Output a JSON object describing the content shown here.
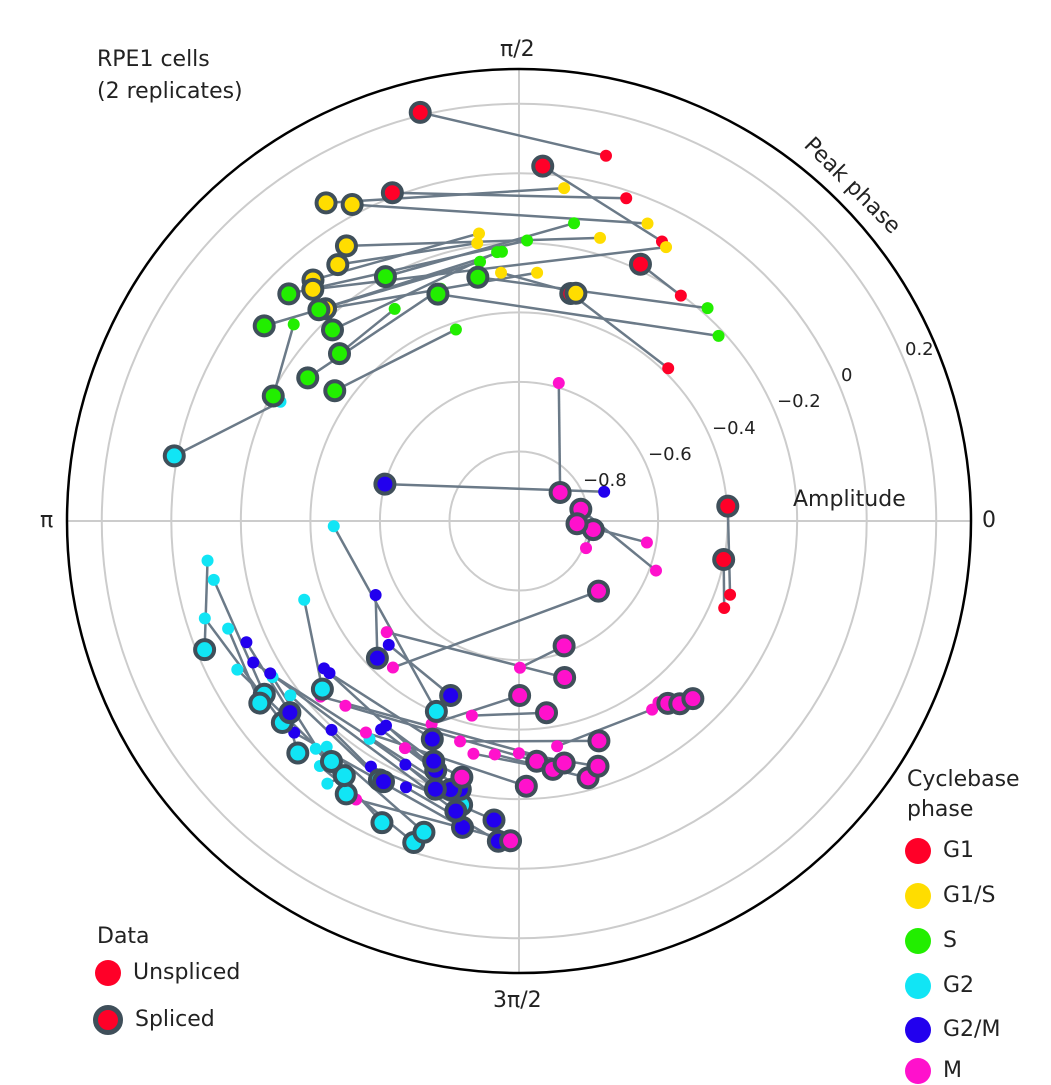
{
  "title": {
    "line1": "RPE1 cells",
    "line2": "(2 replicates)"
  },
  "axis": {
    "angular_label": "Peak phase",
    "radial_label": "Amplitude",
    "angular_ticks": [
      "0",
      "π/2",
      "π",
      "3π/2"
    ],
    "radial_ticks": [
      "0.2",
      "0",
      "−0.2",
      "−0.4",
      "−0.6",
      "−0.8"
    ]
  },
  "legend_data": {
    "title": "Data",
    "items": [
      {
        "label": "Unspliced",
        "style": "plain",
        "color": "#ff0028"
      },
      {
        "label": "Spliced",
        "style": "ring",
        "color": "#ff0028"
      }
    ]
  },
  "legend_phase": {
    "title": "Cyclebase\nphase",
    "items": [
      {
        "label": "G1",
        "color": "#ff0028"
      },
      {
        "label": "G1/S",
        "color": "#ffdd00"
      },
      {
        "label": "S",
        "color": "#22ee00"
      },
      {
        "label": "G2",
        "color": "#11e5f5"
      },
      {
        "label": "G2/M",
        "color": "#2200ee"
      },
      {
        "label": "M",
        "color": "#ff11cc"
      }
    ]
  },
  "chart_data": {
    "type": "scatter",
    "coordinate_system": "polar",
    "theta_unit": "radians",
    "r_range": [
      -1.0,
      0.3
    ],
    "r_gridlines": [
      -0.8,
      -0.6,
      -0.4,
      -0.2,
      0,
      0.2
    ],
    "theta_gridlines": [
      0,
      1.5708,
      3.1416,
      4.7124
    ],
    "grid": true,
    "colors": {
      "G1": "#ff0028",
      "G1/S": "#ffdd00",
      "S": "#22ee00",
      "G2": "#11e5f5",
      "G2/M": "#2200ee",
      "M": "#ff11cc",
      "connector": "#6b7a88",
      "ring": "#3f4f5a"
    },
    "series": [
      {
        "name": "Unspliced",
        "style": "plain"
      },
      {
        "name": "Spliced",
        "style": "ring"
      }
    ],
    "pairs": [
      {
        "phase": "G1",
        "spliced": [
          1.808,
          0.209
        ],
        "unspliced": [
          1.337,
          0.08
        ]
      },
      {
        "phase": "G1",
        "spliced": [
          1.939,
          0.012
        ],
        "unspliced": [
          1.25,
          -0.022
        ]
      },
      {
        "phase": "G1",
        "spliced": [
          1.504,
          0.023
        ],
        "unspliced": [
          1.098,
          -0.097
        ]
      },
      {
        "phase": "G1",
        "spliced": [
          1.347,
          -0.329
        ],
        "unspliced": [
          0.797,
          -0.386
        ]
      },
      {
        "phase": "G1",
        "spliced": [
          0.071,
          -0.398
        ],
        "unspliced": [
          -0.336,
          -0.357
        ]
      },
      {
        "phase": "G1",
        "spliced": [
          -0.186,
          -0.401
        ],
        "unspliced": [
          -0.401,
          -0.359
        ]
      },
      {
        "phase": "G1",
        "spliced": [
          1.129,
          -0.183
        ],
        "unspliced": [
          0.948,
          -0.202
        ]
      },
      {
        "phase": "G1/S",
        "spliced": [
          2.116,
          0.07
        ],
        "unspliced": [
          1.436,
          -0.034
        ]
      },
      {
        "phase": "G1/S",
        "spliced": [
          2.056,
          0.029
        ],
        "unspliced": [
          1.163,
          -0.068
        ]
      },
      {
        "phase": "G1/S",
        "spliced": [
          2.131,
          -0.066
        ],
        "unspliced": [
          1.292,
          -0.153
        ]
      },
      {
        "phase": "G1/S",
        "spliced": [
          2.278,
          -0.088
        ],
        "unspliced": [
          1.709,
          -0.165
        ]
      },
      {
        "phase": "G1/S",
        "spliced": [
          2.298,
          -0.108
        ],
        "unspliced": [
          1.078,
          -0.106
        ]
      },
      {
        "phase": "G1/S",
        "spliced": [
          2.31,
          -0.174
        ],
        "unspliced": [
          1.498,
          -0.284
        ]
      },
      {
        "phase": "G1/S",
        "spliced": [
          1.326,
          -0.325
        ],
        "unspliced": [
          1.643,
          -0.284
        ]
      },
      {
        "phase": "G1/S",
        "spliced": [
          2.186,
          -0.097
        ],
        "unspliced": [
          1.72,
          -0.192
        ]
      },
      {
        "phase": "S",
        "spliced": [
          2.363,
          -0.07
        ],
        "unspliced": [
          1.542,
          -0.193
        ]
      },
      {
        "phase": "S",
        "spliced": [
          2.488,
          -0.077
        ],
        "unspliced": [
          1.72,
          -0.246
        ]
      },
      {
        "phase": "S",
        "spliced": [
          2.329,
          -0.163
        ],
        "unspliced": [
          1.634,
          -0.224
        ]
      },
      {
        "phase": "S",
        "spliced": [
          2.071,
          -0.199
        ],
        "unspliced": [
          1.388,
          -0.129
        ]
      },
      {
        "phase": "S",
        "spliced": [
          2.546,
          -0.266
        ],
        "unspliced": [
          1.896,
          -0.295
        ]
      },
      {
        "phase": "S",
        "spliced": [
          2.671,
          -0.207
        ],
        "unspliced": [
          2.424,
          -0.14
        ]
      },
      {
        "phase": "S",
        "spliced": [
          2.526,
          -0.351
        ],
        "unspliced": [
          1.889,
          -0.42
        ]
      },
      {
        "phase": "S",
        "spliced": [
          1.738,
          -0.289
        ],
        "unspliced": [
          0.846,
          -0.182
        ]
      },
      {
        "phase": "S",
        "spliced": [
          1.914,
          -0.307
        ],
        "unspliced": [
          0.748,
          -0.217
        ]
      },
      {
        "phase": "S",
        "spliced": [
          2.344,
          -0.232
        ],
        "unspliced": [
          1.652,
          -0.224
        ]
      },
      {
        "phase": "S",
        "spliced": [
          2.391,
          -0.294
        ],
        "unspliced": [
          2.101,
          -0.293
        ]
      },
      {
        "phase": "G2",
        "spliced": [
          2.955,
          0.009
        ],
        "unspliced": [
          2.678,
          -0.233
        ]
      },
      {
        "phase": "G2",
        "spliced": [
          3.53,
          -0.023
        ],
        "unspliced": [
          3.268,
          -0.097
        ]
      },
      {
        "phase": "G2",
        "spliced": [
          3.739,
          -0.114
        ],
        "unspliced": [
          3.332,
          -0.106
        ]
      },
      {
        "phase": "G2",
        "spliced": [
          3.754,
          -0.089
        ],
        "unspliced": [
          3.496,
          -0.108
        ]
      },
      {
        "phase": "G2",
        "spliced": [
          3.847,
          -0.106
        ],
        "unspliced": [
          3.442,
          -0.054
        ]
      },
      {
        "phase": "G2",
        "spliced": [
          4.05,
          -0.123
        ],
        "unspliced": [
          3.627,
          -0.084
        ]
      },
      {
        "phase": "G2",
        "spliced": [
          4.218,
          -0.154
        ],
        "unspliced": [
          3.793,
          -0.173
        ]
      },
      {
        "phase": "G2",
        "spliced": [
          4.148,
          -0.071
        ],
        "unspliced": [
          3.706,
          -0.161
        ]
      },
      {
        "phase": "G2",
        "spliced": [
          4.286,
          -0.047
        ],
        "unspliced": [
          3.984,
          -0.122
        ]
      },
      {
        "phase": "G2",
        "spliced": [
          4.396,
          -0.027
        ],
        "unspliced": [
          4.03,
          -0.092
        ]
      },
      {
        "phase": "G2",
        "spliced": [
          4.416,
          -0.064
        ],
        "unspliced": [
          4.007,
          -0.147
        ]
      },
      {
        "phase": "G2",
        "spliced": [
          3.951,
          -0.078
        ],
        "unspliced": [
          3.856,
          -0.123
        ]
      },
      {
        "phase": "G2",
        "spliced": [
          4.111,
          -0.112
        ],
        "unspliced": [
          4.082,
          -0.065
        ]
      },
      {
        "phase": "G2",
        "spliced": [
          4.513,
          -0.167
        ],
        "unspliced": [
          4.111,
          -0.24
        ]
      },
      {
        "phase": "G2",
        "spliced": [
          3.849,
          -0.256
        ],
        "unspliced": [
          3.493,
          -0.342
        ]
      },
      {
        "phase": "G2",
        "spliced": [
          4.303,
          -0.403
        ],
        "unspliced": [
          3.17,
          -0.467
        ]
      },
      {
        "phase": "G2/M",
        "spliced": [
          4.39,
          -0.244
        ],
        "unspliced": [
          3.789,
          -0.297
        ]
      },
      {
        "phase": "G2/M",
        "spliced": [
          4.53,
          -0.104
        ],
        "unspliced": [
          3.897,
          -0.112
        ]
      },
      {
        "phase": "G2/M",
        "spliced": [
          4.629,
          -0.137
        ],
        "unspliced": [
          4.17,
          -0.175
        ]
      },
      {
        "phase": "G2/M",
        "spliced": [
          4.497,
          -0.21
        ],
        "unspliced": [
          4.128,
          -0.281
        ]
      },
      {
        "phase": "G2/M",
        "spliced": [
          4.648,
          -0.077
        ],
        "unspliced": [
          4.311,
          -0.168
        ]
      },
      {
        "phase": "G2/M",
        "spliced": [
          4.498,
          -0.146
        ],
        "unspliced": [
          3.691,
          -0.161
        ]
      },
      {
        "phase": "G2/M",
        "spliced": [
          4.463,
          -0.203
        ],
        "unspliced": [
          3.631,
          -0.134
        ]
      },
      {
        "phase": "G2/M",
        "spliced": [
          3.911,
          -0.433
        ],
        "unspliced": [
          3.618,
          -0.536
        ]
      },
      {
        "phase": "G2/M",
        "spliced": [
          4.339,
          -0.461
        ],
        "unspliced": [
          3.902,
          -0.483
        ]
      },
      {
        "phase": "G2/M",
        "spliced": [
          4.334,
          -0.325
        ],
        "unspliced": [
          3.818,
          -0.301
        ]
      },
      {
        "phase": "G2/M",
        "spliced": [
          4.41,
          -0.192
        ],
        "unspliced": [
          4.276,
          -0.227
        ]
      },
      {
        "phase": "G2/M",
        "spliced": [
          4.371,
          -0.267
        ],
        "unspliced": [
          4.136,
          -0.298
        ]
      },
      {
        "phase": "G2/M",
        "spliced": [
          4.233,
          -0.155
        ],
        "unspliced": [
          3.981,
          -0.193
        ]
      },
      {
        "phase": "G2/M",
        "spliced": [
          3.838,
          -0.141
        ],
        "unspliced": [
          3.56,
          -0.142
        ]
      },
      {
        "phase": "G2/M",
        "spliced": [
          2.873,
          -0.6
        ],
        "unspliced": [
          0.331,
          -0.741
        ]
      },
      {
        "phase": "M",
        "spliced": [
          4.493,
          -0.245
        ],
        "unspliced": [
          4.247,
          -0.269
        ]
      },
      {
        "phase": "M",
        "spliced": [
          4.686,
          -0.08
        ],
        "unspliced": [
          4.183,
          -0.072
        ]
      },
      {
        "phase": "M",
        "spliced": [
          4.74,
          -0.237
        ],
        "unspliced": [
          4.086,
          -0.249
        ]
      },
      {
        "phase": "M",
        "spliced": [
          4.786,
          -0.307
        ],
        "unspliced": [
          3.958,
          -0.271
        ]
      },
      {
        "phase": "M",
        "spliced": [
          4.848,
          -0.279
        ],
        "unspliced": [
          4.519,
          -0.318
        ]
      },
      {
        "phase": "M",
        "spliced": [
          4.975,
          -0.235
        ],
        "unspliced": [
          4.609,
          -0.325
        ]
      },
      {
        "phase": "M",
        "spliced": [
          5.024,
          -0.259
        ],
        "unspliced": [
          4.712,
          -0.332
        ]
      },
      {
        "phase": "M",
        "spliced": [
          4.897,
          -0.292
        ],
        "unspliced": [
          3.866,
          -0.238
        ]
      },
      {
        "phase": "M",
        "spliced": [
          4.716,
          -0.498
        ],
        "unspliced": [
          4.306,
          -0.364
        ]
      },
      {
        "phase": "M",
        "spliced": [
          5.061,
          -0.327
        ],
        "unspliced": [
          4.451,
          -0.344
        ]
      },
      {
        "phase": "M",
        "spliced": [
          4.855,
          -0.443
        ],
        "unspliced": [
          4.475,
          -0.424
        ]
      },
      {
        "phase": "M",
        "spliced": [
          4.996,
          -0.531
        ],
        "unspliced": [
          3.84,
          -0.503
        ]
      },
      {
        "phase": "M",
        "spliced": [
          5.397,
          -0.323
        ],
        "unspliced": [
          4.88,
          -0.343
        ]
      },
      {
        "phase": "M",
        "spliced": [
          5.434,
          -0.3
        ],
        "unspliced": [
          5.327,
          -0.336
        ]
      },
      {
        "phase": "M",
        "spliced": [
          5.487,
          -0.285
        ],
        "unspliced": [
          5.368,
          -0.342
        ]
      },
      {
        "phase": "M",
        "spliced": [
          5.56,
          -0.695
        ],
        "unspliced": [
          4.002,
          -0.444
        ]
      },
      {
        "phase": "M",
        "spliced": [
          6.168,
          -0.785
        ],
        "unspliced": [
          5.898,
          -0.792
        ]
      },
      {
        "phase": "M",
        "spliced": [
          0.188,
          -0.819
        ],
        "unspliced": [
          5.936,
          -0.581
        ]
      },
      {
        "phase": "M",
        "spliced": [
          6.236,
          -0.833
        ],
        "unspliced": [
          6.117,
          -0.627
        ]
      },
      {
        "phase": "M",
        "spliced": [
          0.607,
          -0.856
        ],
        "unspliced": [
          1.29,
          -0.587
        ]
      },
      {
        "phase": "M",
        "spliced": [
          5.059,
          -0.618
        ],
        "unspliced": [
          4.719,
          -0.578
        ]
      }
    ]
  }
}
